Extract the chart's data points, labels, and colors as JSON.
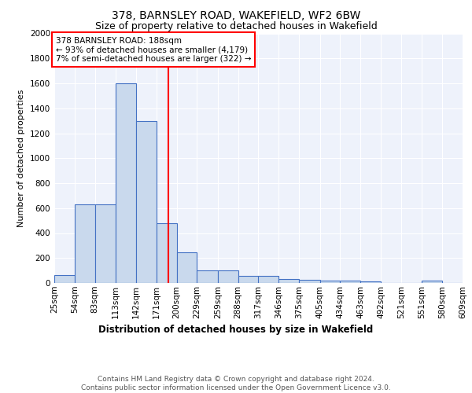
{
  "title1": "378, BARNSLEY ROAD, WAKEFIELD, WF2 6BW",
  "title2": "Size of property relative to detached houses in Wakefield",
  "xlabel": "Distribution of detached houses by size in Wakefield",
  "ylabel": "Number of detached properties",
  "bin_edges": [
    25,
    54,
    83,
    113,
    142,
    171,
    200,
    229,
    259,
    288,
    317,
    346,
    375,
    405,
    434,
    463,
    492,
    521,
    551,
    580,
    609
  ],
  "bar_heights": [
    60,
    630,
    630,
    1600,
    1300,
    480,
    245,
    100,
    100,
    55,
    55,
    30,
    25,
    20,
    20,
    15,
    0,
    0,
    20,
    0
  ],
  "bar_color": "#c9d9ed",
  "bar_edge_color": "#4472c4",
  "bar_edge_width": 0.8,
  "red_line_x": 188,
  "annotation_text": "378 BARNSLEY ROAD: 188sqm\n← 93% of detached houses are smaller (4,179)\n7% of semi-detached houses are larger (322) →",
  "annotation_box_color": "white",
  "annotation_box_edge_color": "red",
  "ylim": [
    0,
    2000
  ],
  "yticks": [
    0,
    200,
    400,
    600,
    800,
    1000,
    1200,
    1400,
    1600,
    1800,
    2000
  ],
  "background_color": "#eef2fb",
  "grid_color": "#ffffff",
  "footer_text": "Contains HM Land Registry data © Crown copyright and database right 2024.\nContains public sector information licensed under the Open Government Licence v3.0.",
  "title1_fontsize": 10,
  "title2_fontsize": 9,
  "xlabel_fontsize": 8.5,
  "ylabel_fontsize": 8,
  "tick_fontsize": 7.5,
  "annotation_fontsize": 7.5,
  "footer_fontsize": 6.5
}
